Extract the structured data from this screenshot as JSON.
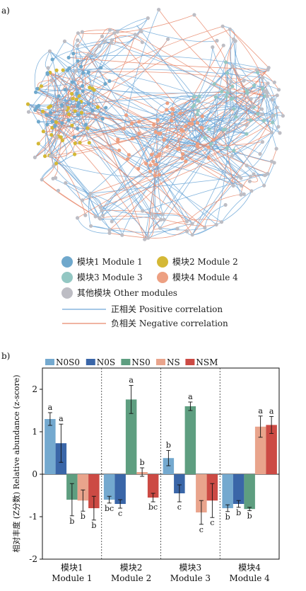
{
  "network_panel": {
    "label": "a)",
    "legend": {
      "modules": [
        {
          "name": "模块1 Module 1",
          "color": "#6fa8cc"
        },
        {
          "name": "模块2 Module 2",
          "color": "#d4b836"
        },
        {
          "name": "模块3 Module 3",
          "color": "#93c7c3"
        },
        {
          "name": "模块4 Module 4",
          "color": "#eda082"
        },
        {
          "name": "其他模块 Other modules",
          "color": "#bdbdc4"
        }
      ],
      "lines": [
        {
          "name": "正相关 Positive correlation",
          "color": "#6fa8d8"
        },
        {
          "name": "负相关 Negative correlation",
          "color": "#e8876a"
        }
      ]
    }
  },
  "chart_data": {
    "type": "bar",
    "label": "b)",
    "ylabel": "相对丰度 (Z分数) Relative abundance (z-score)",
    "ylim": [
      -2,
      2.5
    ],
    "yticks": [
      "-2",
      "-1",
      "0",
      "1",
      "2"
    ],
    "categories": [
      "模块1\nModule 1",
      "模块2\nModule 2",
      "模块3\nModule 3",
      "模块4\nModule 4"
    ],
    "series": [
      {
        "name": "N0S0",
        "color": "#74a9cf",
        "values": [
          1.3,
          -0.6,
          0.38,
          -0.8
        ],
        "errors": [
          0.15,
          0.08,
          0.18,
          0.08
        ],
        "sig": [
          "a",
          "bc",
          "b",
          "b"
        ]
      },
      {
        "name": "N0S",
        "color": "#3a66a8",
        "values": [
          0.73,
          -0.7,
          -0.45,
          -0.7
        ],
        "errors": [
          0.45,
          0.1,
          0.2,
          0.08
        ],
        "sig": [
          "a",
          "c",
          "c",
          "b"
        ]
      },
      {
        "name": "NS0",
        "color": "#5e9e80",
        "values": [
          -0.6,
          1.76,
          1.6,
          -0.82
        ],
        "errors": [
          0.38,
          0.33,
          0.1,
          0.04
        ],
        "sig": [
          "b",
          "a",
          "a",
          "b"
        ]
      },
      {
        "name": "NS",
        "color": "#e9a48c",
        "values": [
          -0.62,
          0.05,
          -0.9,
          1.12
        ],
        "errors": [
          0.25,
          0.1,
          0.28,
          0.25
        ],
        "sig": [
          "b",
          "b",
          "c",
          "a"
        ]
      },
      {
        "name": "NSM",
        "color": "#cc4a44",
        "values": [
          -0.8,
          -0.55,
          -0.62,
          1.16
        ],
        "errors": [
          0.28,
          0.1,
          0.4,
          0.2
        ],
        "sig": [
          "b",
          "bc",
          "c",
          "a"
        ]
      }
    ]
  }
}
